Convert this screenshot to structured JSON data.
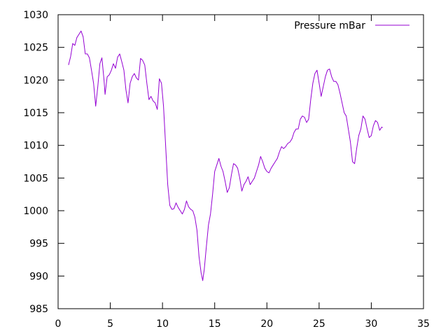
{
  "chart_data": {
    "type": "line",
    "title": "",
    "xlabel": "",
    "ylabel": "",
    "xlim": [
      0,
      35
    ],
    "ylim": [
      985,
      1030
    ],
    "x_ticks": [
      0,
      5,
      10,
      15,
      20,
      25,
      30,
      35
    ],
    "y_ticks": [
      985,
      990,
      995,
      1000,
      1005,
      1010,
      1015,
      1020,
      1025,
      1030
    ],
    "grid": false,
    "legend": {
      "position": "top-right"
    },
    "series": [
      {
        "name": "Pressure mBar",
        "color": "#9400d3",
        "points": [
          [
            1.0,
            1022.3
          ],
          [
            1.2,
            1023.6
          ],
          [
            1.4,
            1025.6
          ],
          [
            1.6,
            1025.3
          ],
          [
            1.8,
            1026.5
          ],
          [
            2.0,
            1027.0
          ],
          [
            2.2,
            1027.5
          ],
          [
            2.4,
            1026.6
          ],
          [
            2.6,
            1024.0
          ],
          [
            2.8,
            1024.0
          ],
          [
            3.0,
            1023.4
          ],
          [
            3.2,
            1021.5
          ],
          [
            3.4,
            1019.5
          ],
          [
            3.6,
            1016.0
          ],
          [
            3.8,
            1019.0
          ],
          [
            4.0,
            1022.5
          ],
          [
            4.2,
            1023.4
          ],
          [
            4.4,
            1020.0
          ],
          [
            4.5,
            1017.8
          ],
          [
            4.7,
            1020.5
          ],
          [
            4.9,
            1020.8
          ],
          [
            5.1,
            1021.5
          ],
          [
            5.3,
            1022.5
          ],
          [
            5.5,
            1021.8
          ],
          [
            5.7,
            1023.5
          ],
          [
            5.9,
            1024.0
          ],
          [
            6.1,
            1022.8
          ],
          [
            6.3,
            1021.5
          ],
          [
            6.5,
            1018.5
          ],
          [
            6.7,
            1016.5
          ],
          [
            6.9,
            1019.5
          ],
          [
            7.1,
            1020.5
          ],
          [
            7.3,
            1021.0
          ],
          [
            7.5,
            1020.3
          ],
          [
            7.7,
            1020.0
          ],
          [
            7.9,
            1023.3
          ],
          [
            8.1,
            1023.0
          ],
          [
            8.3,
            1022.3
          ],
          [
            8.5,
            1019.5
          ],
          [
            8.7,
            1017.0
          ],
          [
            8.9,
            1017.5
          ],
          [
            9.1,
            1016.8
          ],
          [
            9.3,
            1016.5
          ],
          [
            9.5,
            1015.5
          ],
          [
            9.7,
            1020.2
          ],
          [
            9.9,
            1019.5
          ],
          [
            10.1,
            1016.0
          ],
          [
            10.3,
            1010.0
          ],
          [
            10.5,
            1004.0
          ],
          [
            10.7,
            1000.8
          ],
          [
            10.9,
            1000.2
          ],
          [
            11.1,
            1000.3
          ],
          [
            11.3,
            1001.2
          ],
          [
            11.5,
            1000.5
          ],
          [
            11.7,
            1000.0
          ],
          [
            11.9,
            999.5
          ],
          [
            12.1,
            1000.2
          ],
          [
            12.3,
            1001.5
          ],
          [
            12.5,
            1000.6
          ],
          [
            12.7,
            1000.2
          ],
          [
            12.9,
            1000.0
          ],
          [
            13.1,
            999.0
          ],
          [
            13.3,
            997.0
          ],
          [
            13.5,
            993.0
          ],
          [
            13.7,
            990.5
          ],
          [
            13.85,
            989.3
          ],
          [
            14.0,
            991.0
          ],
          [
            14.2,
            994.5
          ],
          [
            14.4,
            997.8
          ],
          [
            14.6,
            999.5
          ],
          [
            14.8,
            1002.5
          ],
          [
            15.0,
            1006.0
          ],
          [
            15.2,
            1007.0
          ],
          [
            15.4,
            1008.0
          ],
          [
            15.6,
            1006.8
          ],
          [
            15.8,
            1006.0
          ],
          [
            16.0,
            1004.5
          ],
          [
            16.2,
            1002.8
          ],
          [
            16.4,
            1003.5
          ],
          [
            16.6,
            1005.5
          ],
          [
            16.8,
            1007.2
          ],
          [
            17.0,
            1007.0
          ],
          [
            17.2,
            1006.5
          ],
          [
            17.4,
            1005.0
          ],
          [
            17.6,
            1003.0
          ],
          [
            17.8,
            1004.0
          ],
          [
            18.0,
            1004.5
          ],
          [
            18.2,
            1005.2
          ],
          [
            18.4,
            1004.0
          ],
          [
            18.6,
            1004.5
          ],
          [
            18.8,
            1005.0
          ],
          [
            19.0,
            1006.0
          ],
          [
            19.2,
            1007.0
          ],
          [
            19.4,
            1008.3
          ],
          [
            19.6,
            1007.5
          ],
          [
            19.8,
            1006.5
          ],
          [
            20.0,
            1006.0
          ],
          [
            20.2,
            1005.8
          ],
          [
            20.4,
            1006.5
          ],
          [
            20.6,
            1007.0
          ],
          [
            20.8,
            1007.5
          ],
          [
            21.0,
            1008.0
          ],
          [
            21.2,
            1009.0
          ],
          [
            21.4,
            1009.8
          ],
          [
            21.6,
            1009.5
          ],
          [
            21.8,
            1009.8
          ],
          [
            22.0,
            1010.3
          ],
          [
            22.2,
            1010.5
          ],
          [
            22.4,
            1011.0
          ],
          [
            22.6,
            1012.0
          ],
          [
            22.8,
            1012.5
          ],
          [
            23.0,
            1012.5
          ],
          [
            23.2,
            1014.0
          ],
          [
            23.4,
            1014.5
          ],
          [
            23.6,
            1014.3
          ],
          [
            23.8,
            1013.5
          ],
          [
            24.0,
            1014.0
          ],
          [
            24.2,
            1017.0
          ],
          [
            24.4,
            1019.5
          ],
          [
            24.6,
            1021.0
          ],
          [
            24.8,
            1021.5
          ],
          [
            25.0,
            1019.5
          ],
          [
            25.2,
            1017.5
          ],
          [
            25.4,
            1019.0
          ],
          [
            25.6,
            1020.5
          ],
          [
            25.8,
            1021.5
          ],
          [
            26.0,
            1021.7
          ],
          [
            26.2,
            1020.5
          ],
          [
            26.4,
            1019.8
          ],
          [
            26.6,
            1019.8
          ],
          [
            26.8,
            1019.3
          ],
          [
            27.0,
            1018.0
          ],
          [
            27.2,
            1016.5
          ],
          [
            27.4,
            1015.0
          ],
          [
            27.6,
            1014.5
          ],
          [
            27.8,
            1012.5
          ],
          [
            28.0,
            1010.5
          ],
          [
            28.2,
            1007.5
          ],
          [
            28.4,
            1007.2
          ],
          [
            28.6,
            1009.5
          ],
          [
            28.8,
            1011.5
          ],
          [
            29.0,
            1012.5
          ],
          [
            29.2,
            1014.5
          ],
          [
            29.4,
            1014.0
          ],
          [
            29.6,
            1012.5
          ],
          [
            29.8,
            1011.2
          ],
          [
            30.0,
            1011.5
          ],
          [
            30.2,
            1013.0
          ],
          [
            30.4,
            1013.8
          ],
          [
            30.6,
            1013.5
          ],
          [
            30.8,
            1012.3
          ],
          [
            31.0,
            1012.8
          ],
          [
            31.1,
            1012.7
          ]
        ]
      }
    ]
  }
}
